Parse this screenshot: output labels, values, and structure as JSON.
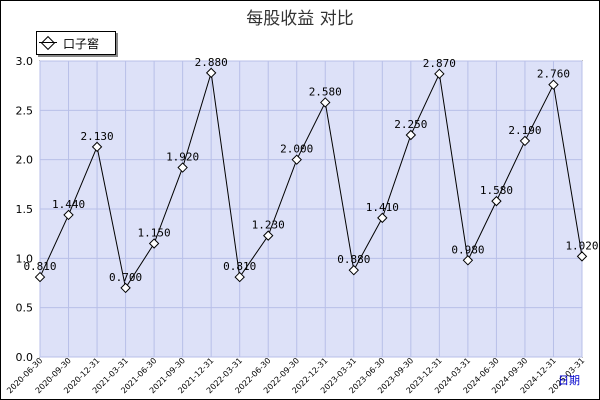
{
  "chart_data": {
    "type": "line",
    "title": "每股收益  对比",
    "xlabel": "日期",
    "ylabel": "",
    "ylim": [
      0.0,
      3.0
    ],
    "yticks": [
      "0.0",
      "0.5",
      "1.0",
      "1.5",
      "2.0",
      "2.5",
      "3.0"
    ],
    "grid": true,
    "legend_position": "top-left",
    "x": [
      "2020-06-30",
      "2020-09-30",
      "2020-12-31",
      "2021-03-31",
      "2021-06-30",
      "2021-09-30",
      "2021-12-31",
      "2022-03-31",
      "2022-06-30",
      "2022-09-30",
      "2022-12-31",
      "2023-03-31",
      "2023-06-30",
      "2023-09-30",
      "2023-12-31",
      "2024-03-31",
      "2024-06-30",
      "2024-09-30",
      "2024-12-31",
      "2025-03-31"
    ],
    "series": [
      {
        "name": "口子窖",
        "values": [
          0.81,
          1.44,
          2.13,
          0.7,
          1.15,
          1.92,
          2.88,
          0.81,
          1.23,
          2.0,
          2.58,
          0.88,
          1.41,
          2.25,
          2.87,
          0.98,
          1.58,
          2.19,
          2.76,
          1.02
        ],
        "labels": [
          "0.810",
          "1.440",
          "2.130",
          "0.700",
          "1.150",
          "1.920",
          "2.880",
          "0.810",
          "1.230",
          "2.000",
          "2.580",
          "0.880",
          "1.410",
          "2.250",
          "2.870",
          "0.980",
          "1.580",
          "2.190",
          "2.760",
          "1.020"
        ]
      }
    ],
    "colors": {
      "plot_background": "#dde1f8",
      "grid": "#b8bfe8",
      "line": "#000000",
      "x_label_link": "#0000cc"
    }
  }
}
